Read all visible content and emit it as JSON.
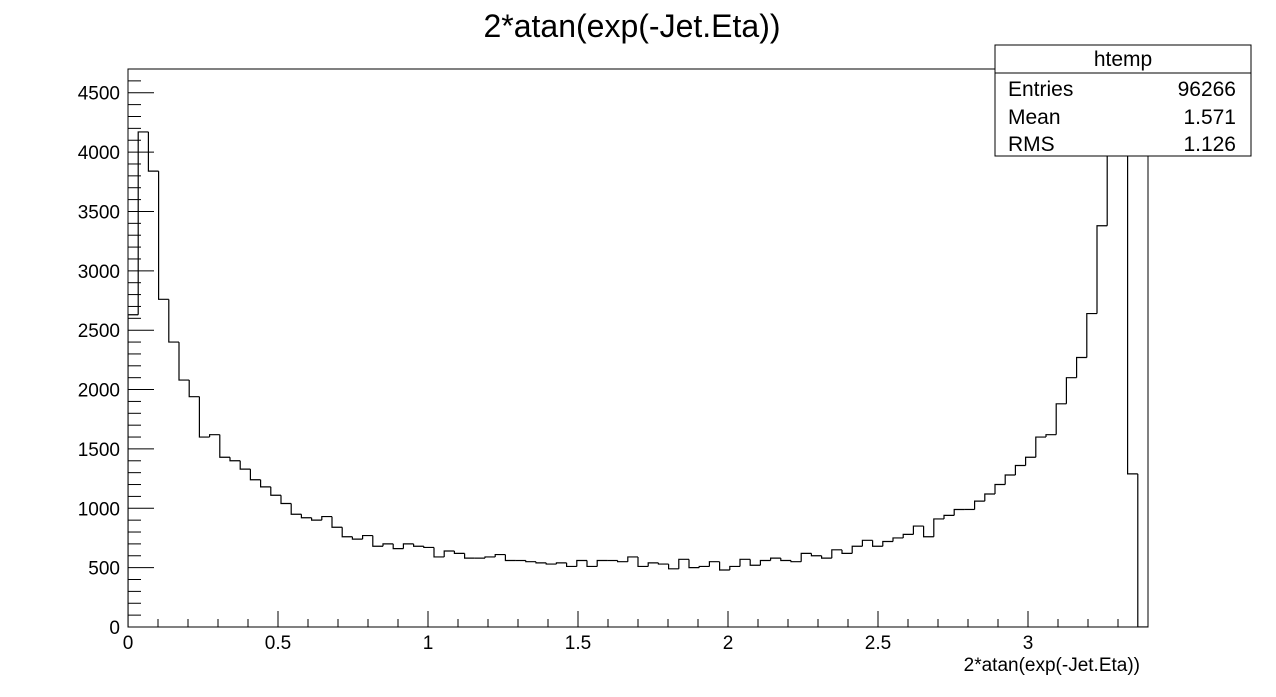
{
  "chart_data": {
    "type": "histogram",
    "title": "2*atan(exp(-Jet.Eta))",
    "xlabel": "2*atan(exp(-Jet.Eta))",
    "ylabel": "",
    "xlim": [
      0,
      3.4
    ],
    "ylim": [
      0,
      4700
    ],
    "x_ticks": [
      0,
      0.5,
      1,
      1.5,
      2,
      2.5,
      3
    ],
    "x_tick_labels": [
      "0",
      "0.5",
      "1",
      "1.5",
      "2",
      "2.5",
      "3"
    ],
    "y_ticks": [
      0,
      500,
      1000,
      1500,
      2000,
      2500,
      3000,
      3500,
      4000,
      4500
    ],
    "y_tick_labels": [
      "0",
      "500",
      "1000",
      "1500",
      "2000",
      "2500",
      "3000",
      "3500",
      "4000",
      "4500"
    ],
    "x_minor_step": 0.1,
    "y_minor_step": 100,
    "bin_width": 0.034,
    "bin_edges_start": 0,
    "counts": [
      2630,
      4170,
      3840,
      2760,
      2400,
      2080,
      1940,
      1600,
      1620,
      1430,
      1400,
      1330,
      1240,
      1180,
      1110,
      1040,
      950,
      920,
      900,
      930,
      840,
      760,
      740,
      770,
      680,
      700,
      660,
      700,
      680,
      670,
      590,
      640,
      620,
      580,
      580,
      590,
      610,
      560,
      560,
      550,
      540,
      530,
      540,
      510,
      560,
      510,
      560,
      560,
      550,
      590,
      510,
      540,
      530,
      490,
      570,
      500,
      510,
      550,
      480,
      510,
      570,
      520,
      560,
      580,
      560,
      550,
      620,
      600,
      580,
      650,
      620,
      680,
      730,
      680,
      720,
      750,
      780,
      850,
      760,
      910,
      940,
      990,
      990,
      1060,
      1120,
      1200,
      1280,
      1360,
      1430,
      1600,
      1620,
      1880,
      2100,
      2270,
      2640,
      3380,
      4700,
      4700,
      1290,
      0
    ],
    "grid": false,
    "legend": "none",
    "line_color": "#000000",
    "stats_box": {
      "title": "htemp",
      "placement": "top-right",
      "rows": [
        {
          "label": "Entries",
          "value": "96266"
        },
        {
          "label": "Mean",
          "value": "1.571"
        },
        {
          "label": "RMS",
          "value": "1.126"
        }
      ]
    }
  }
}
